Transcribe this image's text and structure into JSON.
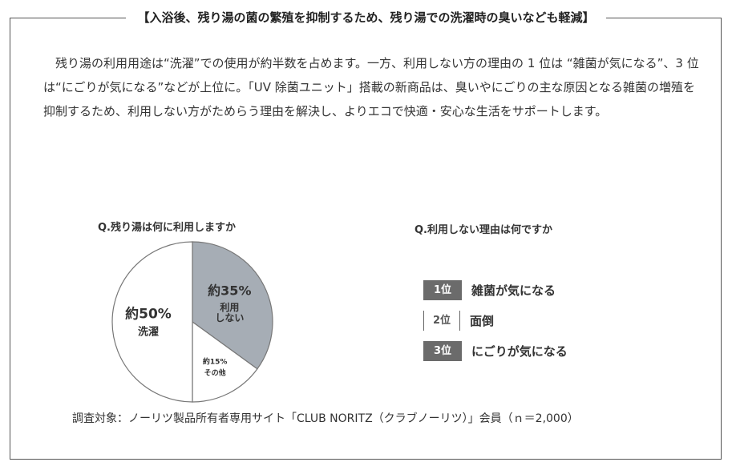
{
  "title": "【入浴後、残り湯の菌の繁殖を抑制するため、残り湯での洗濯時の臭いなども軽減】",
  "body_text": "残り湯の利用用途は“洗濯”での使用が約半数を占めます。一方、利用しない方の理由の 1 位は “雑菌が気になる”、3 位は“にごりが気になる”などが上位に。「UV 除菌ユニット」搭載の新商品は、臭いやにごりの主な原因となる雑菌の増殖を抑制するため、利用しない方がためらう理由を解決し、よりエコで快適・安心な生活をサポートします。",
  "left_question": "Q.残り湯は何に利用しますか",
  "right_question": "Q.利用しない理由は何ですか",
  "colors": {
    "pie_highlight": "#a6adb5",
    "pie_plain": "#ffffff",
    "badge": "#6b6b6b"
  },
  "chart_data": [
    {
      "type": "pie",
      "title": "Q.残り湯は何に利用しますか",
      "slices": [
        {
          "value_label": "約35%",
          "label": "利用\nしない",
          "value": 35,
          "highlight": true
        },
        {
          "value_label": "約15%",
          "label": "その他",
          "value": 15,
          "highlight": false
        },
        {
          "value_label": "約50%",
          "label": "洗濯",
          "value": 50,
          "highlight": false
        }
      ]
    },
    {
      "type": "table",
      "title": "Q.利用しない理由は何ですか",
      "rows": [
        {
          "rank": "1位",
          "reason": "雑菌が気になる"
        },
        {
          "rank": "2位",
          "reason": "面倒"
        },
        {
          "rank": "3位",
          "reason": "にごりが気になる"
        }
      ]
    }
  ],
  "footnote": "調査対象：ノーリツ製品所有者専用サイト「CLUB NORITZ（クラブノーリツ）」会員（ｎ＝2,000）"
}
